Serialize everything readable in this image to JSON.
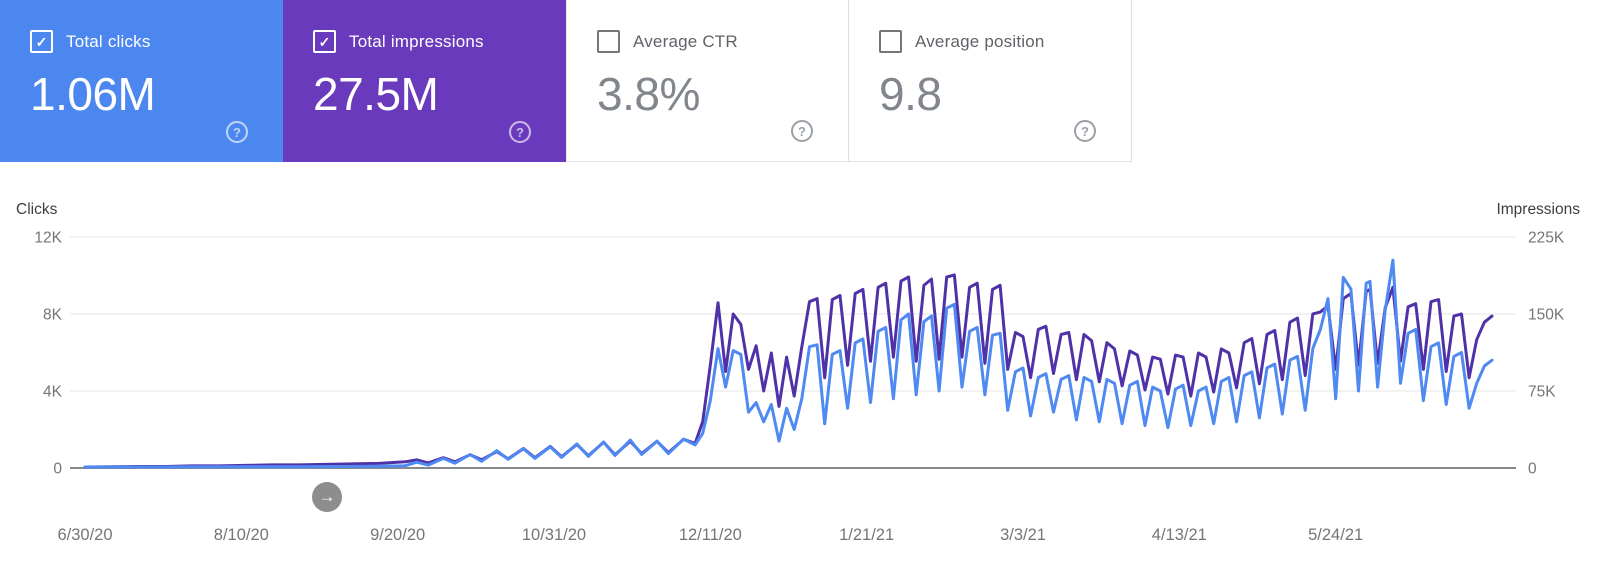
{
  "icons": {
    "help": "?",
    "check": "✓"
  },
  "controls": {
    "scroll_arrow_icon": "→"
  },
  "cards": [
    {
      "id": "total-clicks",
      "label": "Total clicks",
      "value": "1.06M",
      "checked": true,
      "bg": "#4c87f0",
      "fg": "#ffffff"
    },
    {
      "id": "total-impressions",
      "label": "Total impressions",
      "value": "27.5M",
      "checked": true,
      "bg": "#6a3abc",
      "fg": "#ffffff"
    },
    {
      "id": "average-ctr",
      "label": "Average CTR",
      "value": "3.8%",
      "checked": false,
      "bg": "#ffffff",
      "fg": "#80868b"
    },
    {
      "id": "average-position",
      "label": "Average position",
      "value": "9.8",
      "checked": false,
      "bg": "#ffffff",
      "fg": "#80868b"
    }
  ],
  "chart_data": {
    "type": "line",
    "legend_position": "none",
    "grid": true,
    "left_axis": {
      "title": "Clicks",
      "range": [
        0,
        12
      ],
      "ticks": [
        0,
        4,
        8,
        12
      ],
      "tick_labels": [
        "0",
        "4K",
        "8K",
        "12K"
      ]
    },
    "right_axis": {
      "title": "Impressions",
      "range": [
        0,
        225
      ],
      "ticks": [
        0,
        75,
        150,
        225
      ],
      "tick_labels": [
        "0",
        "75K",
        "150K",
        "225K"
      ]
    },
    "x_ticks": [
      {
        "day": 0,
        "label": "6/30/20"
      },
      {
        "day": 41,
        "label": "8/10/20"
      },
      {
        "day": 82,
        "label": "9/20/20"
      },
      {
        "day": 123,
        "label": "10/31/20"
      },
      {
        "day": 164,
        "label": "12/11/20"
      },
      {
        "day": 205,
        "label": "1/21/21"
      },
      {
        "day": 246,
        "label": "3/3/21"
      },
      {
        "day": 287,
        "label": "4/13/21"
      },
      {
        "day": 328,
        "label": "5/24/21"
      }
    ],
    "x_max_day": 369,
    "series": [
      {
        "name": "Clicks",
        "axis": "left",
        "color": "#4f89f2",
        "point_index": 1
      },
      {
        "name": "Impressions",
        "axis": "right",
        "color": "#5032a8",
        "point_index": 2
      }
    ],
    "points_format": [
      "day_index_from_6/30/20",
      "clicks_thousands",
      "impressions_thousands"
    ],
    "points": [
      [
        0,
        0.05,
        1
      ],
      [
        7,
        0.05,
        1.2
      ],
      [
        14,
        0.05,
        1.5
      ],
      [
        21,
        0.05,
        1.5
      ],
      [
        28,
        0.06,
        2
      ],
      [
        35,
        0.06,
        2
      ],
      [
        42,
        0.06,
        2.5
      ],
      [
        49,
        0.07,
        3
      ],
      [
        56,
        0.07,
        3
      ],
      [
        63,
        0.08,
        3.5
      ],
      [
        70,
        0.08,
        4
      ],
      [
        77,
        0.09,
        4.5
      ],
      [
        84,
        0.12,
        6
      ],
      [
        87,
        0.3,
        8
      ],
      [
        90,
        0.15,
        5
      ],
      [
        94,
        0.5,
        10
      ],
      [
        97,
        0.25,
        6
      ],
      [
        101,
        0.7,
        13
      ],
      [
        104,
        0.35,
        8
      ],
      [
        108,
        0.9,
        16
      ],
      [
        111,
        0.45,
        9
      ],
      [
        115,
        1.0,
        19
      ],
      [
        118,
        0.5,
        10
      ],
      [
        122,
        1.1,
        21
      ],
      [
        125,
        0.55,
        11
      ],
      [
        129,
        1.25,
        23
      ],
      [
        132,
        0.6,
        12
      ],
      [
        136,
        1.35,
        25
      ],
      [
        139,
        0.65,
        13
      ],
      [
        143,
        1.45,
        26
      ],
      [
        146,
        0.7,
        14
      ],
      [
        150,
        1.4,
        26
      ],
      [
        153,
        0.75,
        15
      ],
      [
        157,
        1.5,
        28
      ],
      [
        160,
        1.2,
        24
      ],
      [
        162,
        1.8,
        45
      ],
      [
        164,
        3.5,
        100
      ],
      [
        166,
        6.2,
        161
      ],
      [
        168,
        4.2,
        94
      ],
      [
        170,
        6.1,
        150
      ],
      [
        172,
        5.9,
        140
      ],
      [
        174,
        2.9,
        96
      ],
      [
        176,
        3.4,
        119
      ],
      [
        178,
        2.4,
        75
      ],
      [
        180,
        3.3,
        112
      ],
      [
        182,
        1.4,
        60
      ],
      [
        184,
        3.1,
        108
      ],
      [
        186,
        2.0,
        70
      ],
      [
        188,
        3.6,
        118
      ],
      [
        190,
        6.3,
        162
      ],
      [
        192,
        6.4,
        165
      ],
      [
        194,
        2.3,
        88
      ],
      [
        196,
        5.9,
        164
      ],
      [
        198,
        6.1,
        168
      ],
      [
        200,
        3.1,
        100
      ],
      [
        202,
        6.5,
        170
      ],
      [
        204,
        6.7,
        174
      ],
      [
        206,
        3.4,
        104
      ],
      [
        208,
        7.1,
        176
      ],
      [
        210,
        7.3,
        180
      ],
      [
        212,
        3.6,
        108
      ],
      [
        214,
        7.7,
        182
      ],
      [
        216,
        8.0,
        186
      ],
      [
        218,
        3.8,
        104
      ],
      [
        220,
        7.6,
        178
      ],
      [
        222,
        7.9,
        184
      ],
      [
        224,
        4.0,
        106
      ],
      [
        226,
        8.3,
        186
      ],
      [
        228,
        8.5,
        188
      ],
      [
        230,
        4.2,
        108
      ],
      [
        232,
        7.1,
        176
      ],
      [
        234,
        7.3,
        180
      ],
      [
        236,
        3.8,
        102
      ],
      [
        238,
        6.9,
        174
      ],
      [
        240,
        7.0,
        178
      ],
      [
        242,
        3.0,
        96
      ],
      [
        244,
        5.0,
        132
      ],
      [
        246,
        5.2,
        128
      ],
      [
        248,
        2.7,
        88
      ],
      [
        250,
        4.7,
        135
      ],
      [
        252,
        4.9,
        138
      ],
      [
        254,
        2.9,
        92
      ],
      [
        256,
        4.6,
        130
      ],
      [
        258,
        4.8,
        132
      ],
      [
        260,
        2.5,
        86
      ],
      [
        262,
        4.7,
        130
      ],
      [
        264,
        4.5,
        124
      ],
      [
        266,
        2.4,
        84
      ],
      [
        268,
        4.6,
        122
      ],
      [
        270,
        4.4,
        116
      ],
      [
        272,
        2.3,
        80
      ],
      [
        274,
        4.3,
        114
      ],
      [
        276,
        4.5,
        110
      ],
      [
        278,
        2.2,
        76
      ],
      [
        280,
        4.2,
        108
      ],
      [
        282,
        4.0,
        106
      ],
      [
        284,
        2.1,
        72
      ],
      [
        286,
        4.1,
        110
      ],
      [
        288,
        4.3,
        108
      ],
      [
        290,
        2.2,
        70
      ],
      [
        292,
        4.0,
        112
      ],
      [
        294,
        4.2,
        108
      ],
      [
        296,
        2.3,
        74
      ],
      [
        298,
        4.5,
        116
      ],
      [
        300,
        4.7,
        112
      ],
      [
        302,
        2.4,
        78
      ],
      [
        304,
        4.8,
        122
      ],
      [
        306,
        5.0,
        126
      ],
      [
        308,
        2.6,
        82
      ],
      [
        310,
        5.2,
        130
      ],
      [
        312,
        5.4,
        134
      ],
      [
        314,
        2.8,
        86
      ],
      [
        316,
        5.6,
        142
      ],
      [
        318,
        5.8,
        146
      ],
      [
        320,
        3.0,
        90
      ],
      [
        322,
        6.2,
        150
      ],
      [
        324,
        7.2,
        152
      ],
      [
        326,
        8.8,
        158
      ],
      [
        328,
        3.6,
        96
      ],
      [
        330,
        9.9,
        165
      ],
      [
        332,
        9.3,
        170
      ],
      [
        334,
        4.0,
        100
      ],
      [
        336,
        9.6,
        172
      ],
      [
        337,
        9.7,
        174
      ],
      [
        339,
        4.2,
        102
      ],
      [
        341,
        8.2,
        156
      ],
      [
        343,
        10.8,
        176
      ],
      [
        345,
        4.4,
        104
      ],
      [
        347,
        7.0,
        157
      ],
      [
        349,
        7.2,
        160
      ],
      [
        351,
        3.5,
        96
      ],
      [
        353,
        6.3,
        162
      ],
      [
        355,
        6.5,
        164
      ],
      [
        357,
        3.3,
        94
      ],
      [
        359,
        5.8,
        148
      ],
      [
        361,
        6.0,
        150
      ],
      [
        363,
        3.1,
        88
      ],
      [
        365,
        4.4,
        125
      ],
      [
        367,
        5.3,
        142
      ],
      [
        369,
        5.6,
        148
      ]
    ]
  }
}
